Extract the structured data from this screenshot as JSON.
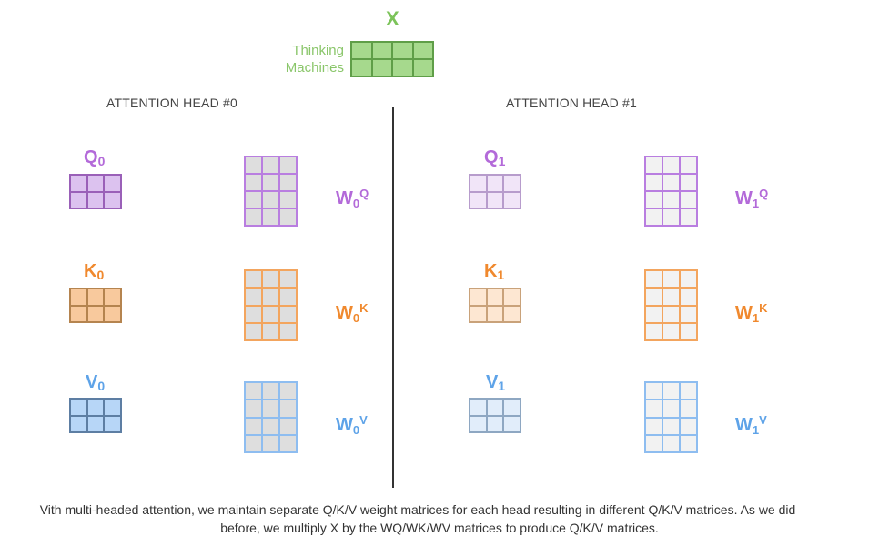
{
  "input": {
    "label": "X",
    "rows": [
      "Thinking",
      "Machines"
    ],
    "colors": {
      "label": "#7cc35a",
      "fill": "#a6d98d",
      "border": "#5f9e48"
    }
  },
  "heads": [
    {
      "title": "ATTENTION HEAD #0",
      "index": "0",
      "matrices": [
        {
          "letter": "Q",
          "weight_sup": "Q",
          "faded": false
        },
        {
          "letter": "K",
          "weight_sup": "K",
          "faded": false
        },
        {
          "letter": "V",
          "weight_sup": "V",
          "faded": false
        }
      ]
    },
    {
      "title": "ATTENTION HEAD #1",
      "index": "1",
      "matrices": [
        {
          "letter": "Q",
          "weight_sup": "Q",
          "faded": true
        },
        {
          "letter": "K",
          "weight_sup": "K",
          "faded": true
        },
        {
          "letter": "V",
          "weight_sup": "V",
          "faded": true
        }
      ]
    }
  ],
  "colors": {
    "Q": {
      "text": "#b36ad9",
      "fill": "#dcc2ef",
      "fill_faded": "#f1e5f8",
      "border": "#9a60b8",
      "border_faded": "#b79ccc",
      "weight_border": "#b97ee0"
    },
    "K": {
      "text": "#f0892e",
      "fill": "#f8c99d",
      "fill_faded": "#fde7d2",
      "border": "#b5844f",
      "border_faded": "#c9a27a",
      "weight_border": "#f3a55e"
    },
    "V": {
      "text": "#5ea3e8",
      "fill": "#b7d6f7",
      "fill_faded": "#e1edfa",
      "border": "#5d7ea3",
      "border_faded": "#8ea7c2",
      "weight_border": "#8ebdf0"
    },
    "weight_fill": "#dedede",
    "weight_fill_faded": "#f2f2f2"
  },
  "caption": {
    "line1": "Vith multi-headed attention, we maintain separate Q/K/V weight matrices for each head resulting in different Q/K/V matrices. As we did",
    "line2": "before, we multiply X by the WQ/WK/WV matrices to produce Q/K/V matrices."
  }
}
